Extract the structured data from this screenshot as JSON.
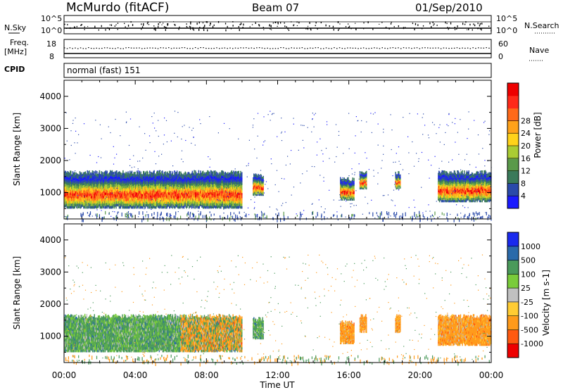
{
  "header": {
    "station": "McMurdo (fitACF)",
    "beam": "Beam 07",
    "date": "01/Sep/2010"
  },
  "top_panels": {
    "nsky_label": "N.Sky",
    "nsky_tick_hi": "10^5",
    "nsky_tick_lo": "10^0",
    "nsearch_label": "N.Search",
    "nsearch_tick_hi": "10^5",
    "nsearch_tick_lo": "10^0",
    "freq_label": "Freq.",
    "freq_unit": "[MHz]",
    "freq_tick_hi": "18",
    "freq_tick_lo": "8",
    "nave_label": "Nave",
    "nave_tick_hi": "60",
    "nave_tick_lo": "0",
    "cpid_label": "CPID",
    "cpid_value": "normal (fast) 151"
  },
  "chart_data": [
    {
      "type": "heatmap",
      "panel": "power",
      "ylabel": "Slant Range [km]",
      "xlabel": "Time UT",
      "ylim": [
        180,
        4500
      ],
      "xlim_hours": [
        0,
        24
      ],
      "yticks": [
        1000,
        2000,
        3000,
        4000
      ],
      "colorbar": {
        "label": "Power [dB]",
        "ticks": [
          "4",
          "8",
          "12",
          "16",
          "20",
          "24",
          "28"
        ],
        "colors": [
          "#1a1aff",
          "#2a4aaa",
          "#3a7a5a",
          "#5a9a4a",
          "#aacc33",
          "#ffd21a",
          "#ffa21a",
          "#ff6a1a",
          "#ff2a1a",
          "#ee0000"
        ]
      },
      "echo_regions": [
        {
          "t0": 0.0,
          "t1": 10.0,
          "r0": 500,
          "r1": 1700
        },
        {
          "t0": 10.6,
          "t1": 11.2,
          "r0": 900,
          "r1": 1600
        },
        {
          "t0": 15.5,
          "t1": 16.3,
          "r0": 750,
          "r1": 1500
        },
        {
          "t0": 16.6,
          "t1": 17.0,
          "r0": 1100,
          "r1": 1700
        },
        {
          "t0": 18.6,
          "t1": 18.9,
          "r0": 1100,
          "r1": 1700
        },
        {
          "t0": 21.0,
          "t1": 24.0,
          "r0": 700,
          "r1": 1700
        }
      ]
    },
    {
      "type": "heatmap",
      "panel": "velocity",
      "ylabel": "Slant Range [km]",
      "xlabel": "Time UT",
      "ylim": [
        180,
        4500
      ],
      "xlim_hours": [
        0,
        24
      ],
      "yticks": [
        1000,
        2000,
        3000,
        4000
      ],
      "colorbar": {
        "label": "Velocity [m s-1]",
        "ticks": [
          "-1000",
          "-500",
          "-100",
          "-25",
          "25",
          "100",
          "500",
          "1000"
        ],
        "colors": [
          "#ee0000",
          "#ff5a10",
          "#ff9a1a",
          "#ffcc33",
          "#c0c0c0",
          "#7acc3a",
          "#4a9a5a",
          "#2a6aaa",
          "#1a2aee"
        ]
      },
      "echo_regions": [
        {
          "t0": 0.0,
          "t1": 10.0,
          "r0": 500,
          "r1": 1700
        },
        {
          "t0": 10.6,
          "t1": 11.2,
          "r0": 900,
          "r1": 1600
        },
        {
          "t0": 15.5,
          "t1": 16.3,
          "r0": 750,
          "r1": 1500
        },
        {
          "t0": 16.6,
          "t1": 17.0,
          "r0": 1100,
          "r1": 1700
        },
        {
          "t0": 18.6,
          "t1": 18.9,
          "r0": 1100,
          "r1": 1700
        },
        {
          "t0": 21.0,
          "t1": 24.0,
          "r0": 700,
          "r1": 1700
        }
      ]
    }
  ],
  "x_axis": {
    "ticks": [
      "00:00",
      "04:00",
      "08:00",
      "12:00",
      "16:00",
      "20:00",
      "00:00"
    ],
    "label": "Time UT"
  }
}
